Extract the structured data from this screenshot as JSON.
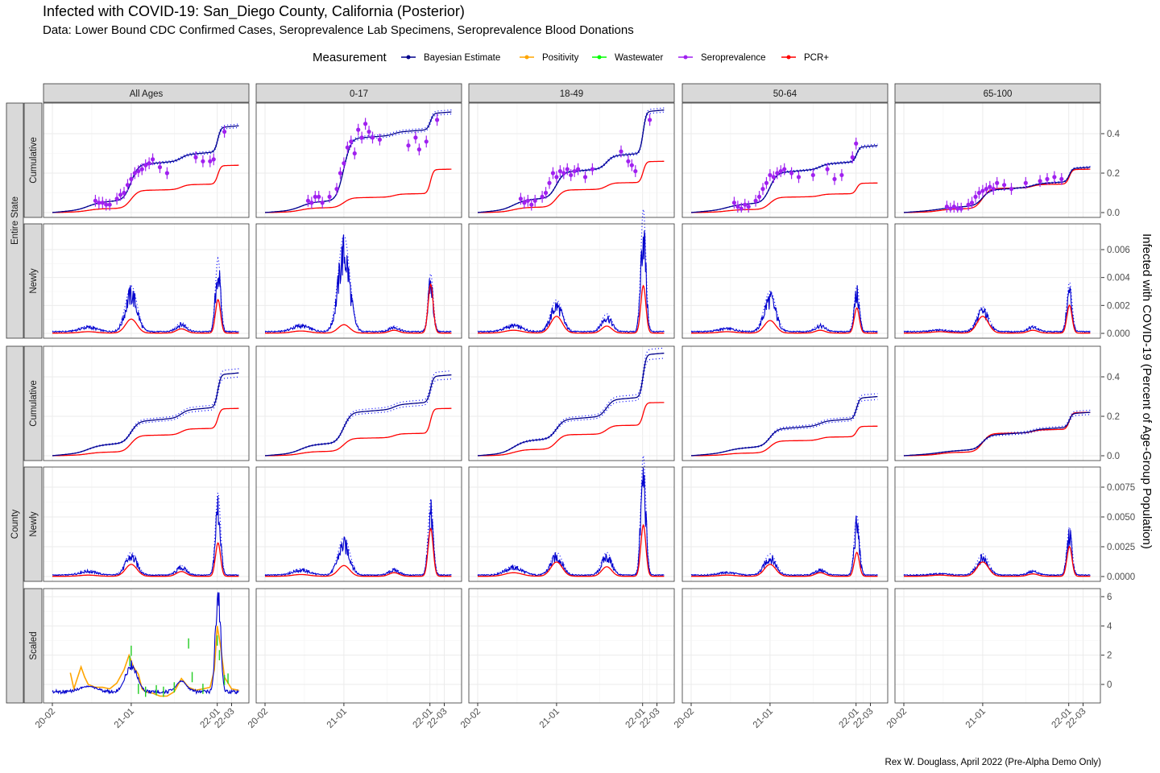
{
  "title": "Infected with COVID-19: San_Diego County, California (Posterior)",
  "subtitle": "Data: Lower Bound CDC Confirmed Cases, Seroprevalence Lab Specimens, Seroprevalence Blood Donations",
  "caption": "Rex W. Douglass, April 2022 (Pre-Alpha Demo Only)",
  "legend": {
    "title": "Measurement",
    "items": [
      {
        "label": "Bayesian Estimate",
        "color": "#00008b"
      },
      {
        "label": "Positivity",
        "color": "#ffa500"
      },
      {
        "label": "Wastewater",
        "color": "#00ff00"
      },
      {
        "label": "Seroprevalence",
        "color": "#a020f0"
      },
      {
        "label": "PCR+",
        "color": "#ff0000"
      }
    ]
  },
  "chart_data": {
    "type": "line",
    "facets": "grid",
    "ages": [
      "All Ages",
      "0-17",
      "18-49",
      "50-64",
      "65-100"
    ],
    "outer_strips": [
      "Entire State",
      "County"
    ],
    "row_strips": [
      "Cumulative",
      "Newly",
      "Cumulative",
      "Newly",
      "Scaled"
    ],
    "ylabel": "Infected with COVID-19 (Percent of Age-Group Population)",
    "x_ticks": [
      "20-02",
      "21-01",
      "22-01",
      "22-03"
    ],
    "x_tick_months": [
      0,
      11,
      23,
      25
    ],
    "x_range_months_since_2020_02": [
      0,
      26
    ],
    "y_ticks": [
      [
        "0.0",
        "0.2",
        "0.4"
      ],
      [
        "0.000",
        "0.002",
        "0.004",
        "0.006"
      ],
      [
        "0.0",
        "0.2",
        "0.4"
      ],
      [
        "0.0000",
        "0.0025",
        "0.0050",
        "0.0075"
      ],
      [
        "0",
        "2",
        "4",
        "6"
      ]
    ],
    "y_tick_values": [
      [
        0,
        0.2,
        0.4
      ],
      [
        0,
        0.002,
        0.004,
        0.006
      ],
      [
        0,
        0.2,
        0.4
      ],
      [
        0,
        0.0025,
        0.005,
        0.0075
      ],
      [
        0,
        2,
        4,
        6
      ]
    ],
    "wave_centers_months": [
      5,
      11,
      18,
      23.1
    ],
    "newly_wave_heights": {
      "note": "peak daily share infected per wave (early 2020, winter 2020-21, summer 2021, Omicron)",
      "state_bayes": [
        [
          0.0003,
          0.0026,
          0.0005,
          0.0042
        ],
        [
          0.0004,
          0.0055,
          0.0003,
          0.0033
        ],
        [
          0.0004,
          0.0018,
          0.001,
          0.007
        ],
        [
          0.0002,
          0.0023,
          0.0004,
          0.0026
        ],
        [
          0.0001,
          0.0014,
          0.0003,
          0.0028
        ]
      ],
      "state_pcr": [
        [
          0.0001,
          0.001,
          0.0003,
          0.0024
        ],
        [
          0.00015,
          0.0006,
          0.0002,
          0.0035
        ],
        [
          0.0002,
          0.0012,
          0.0005,
          0.0034
        ],
        [
          0.0001,
          0.0009,
          0.0002,
          0.0018
        ],
        [
          0.0001,
          0.0012,
          0.0002,
          0.002
        ]
      ],
      "county_bayes": [
        [
          0.0003,
          0.0015,
          0.0006,
          0.0055
        ],
        [
          0.0004,
          0.0025,
          0.0004,
          0.005
        ],
        [
          0.0006,
          0.0015,
          0.0015,
          0.008
        ],
        [
          0.0002,
          0.0014,
          0.0004,
          0.004
        ],
        [
          0.0001,
          0.0014,
          0.0003,
          0.0032
        ]
      ],
      "county_pcr": [
        [
          0.0001,
          0.001,
          0.0004,
          0.0028
        ],
        [
          0.00015,
          0.0009,
          0.0003,
          0.004
        ],
        [
          0.0003,
          0.0012,
          0.0008,
          0.0043
        ],
        [
          0.0001,
          0.001,
          0.0003,
          0.002
        ],
        [
          0.0001,
          0.0012,
          0.0002,
          0.0025
        ]
      ]
    },
    "cumulative_final": {
      "state_bayes": [
        0.44,
        0.51,
        0.52,
        0.34,
        0.23
      ],
      "state_pcr": [
        0.24,
        0.22,
        0.26,
        0.15,
        0.22
      ],
      "county_bayes": [
        0.42,
        0.41,
        0.52,
        0.3,
        0.22
      ],
      "county_pcr": [
        0.24,
        0.24,
        0.27,
        0.15,
        0.22
      ]
    },
    "seroprevalence": [
      [
        [
          6,
          0.06
        ],
        [
          6.5,
          0.05
        ],
        [
          7,
          0.05
        ],
        [
          7.5,
          0.04
        ],
        [
          8,
          0.04
        ],
        [
          9,
          0.07
        ],
        [
          9.5,
          0.09
        ],
        [
          10,
          0.1
        ],
        [
          10.5,
          0.14
        ],
        [
          11,
          0.17
        ],
        [
          11.5,
          0.2
        ],
        [
          12,
          0.21
        ],
        [
          12.5,
          0.22
        ],
        [
          13,
          0.24
        ],
        [
          13.5,
          0.25
        ],
        [
          14,
          0.27
        ],
        [
          15,
          0.23
        ],
        [
          16,
          0.2
        ],
        [
          20,
          0.28
        ],
        [
          21,
          0.26
        ],
        [
          22,
          0.26
        ],
        [
          22.5,
          0.27
        ],
        [
          24,
          0.41
        ]
      ],
      [
        [
          6,
          0.06
        ],
        [
          6.5,
          0.05
        ],
        [
          7,
          0.08
        ],
        [
          7.5,
          0.08
        ],
        [
          8,
          0.05
        ],
        [
          9,
          0.08
        ],
        [
          10,
          0.12
        ],
        [
          10.5,
          0.2
        ],
        [
          11,
          0.25
        ],
        [
          11.5,
          0.33
        ],
        [
          12,
          0.36
        ],
        [
          12.5,
          0.3
        ],
        [
          13,
          0.42
        ],
        [
          13.5,
          0.38
        ],
        [
          14,
          0.45
        ],
        [
          14.5,
          0.41
        ],
        [
          15,
          0.38
        ],
        [
          16,
          0.37
        ],
        [
          20,
          0.34
        ],
        [
          21,
          0.38
        ],
        [
          21.5,
          0.32
        ],
        [
          22.5,
          0.36
        ],
        [
          24,
          0.47
        ]
      ],
      [
        [
          6,
          0.07
        ],
        [
          6.5,
          0.05
        ],
        [
          7,
          0.06
        ],
        [
          7.5,
          0.04
        ],
        [
          8,
          0.06
        ],
        [
          9,
          0.08
        ],
        [
          9.5,
          0.1
        ],
        [
          10,
          0.15
        ],
        [
          10.5,
          0.2
        ],
        [
          11,
          0.18
        ],
        [
          11.5,
          0.21
        ],
        [
          12,
          0.2
        ],
        [
          12.5,
          0.22
        ],
        [
          13,
          0.19
        ],
        [
          13.5,
          0.21
        ],
        [
          14,
          0.22
        ],
        [
          15,
          0.18
        ],
        [
          16,
          0.22
        ],
        [
          20,
          0.31
        ],
        [
          21,
          0.26
        ],
        [
          21.5,
          0.24
        ],
        [
          22,
          0.21
        ],
        [
          24,
          0.47
        ]
      ],
      [
        [
          6,
          0.05
        ],
        [
          6.5,
          0.03
        ],
        [
          7,
          0.02
        ],
        [
          7.5,
          0.04
        ],
        [
          8,
          0.03
        ],
        [
          9,
          0.06
        ],
        [
          9.5,
          0.08
        ],
        [
          10,
          0.12
        ],
        [
          10.5,
          0.15
        ],
        [
          11,
          0.19
        ],
        [
          11.5,
          0.18
        ],
        [
          12,
          0.2
        ],
        [
          12.5,
          0.21
        ],
        [
          13,
          0.22
        ],
        [
          14,
          0.2
        ],
        [
          15,
          0.18
        ],
        [
          17,
          0.19
        ],
        [
          19,
          0.22
        ],
        [
          20,
          0.17
        ],
        [
          21,
          0.19
        ],
        [
          22.5,
          0.28
        ],
        [
          23,
          0.35
        ]
      ],
      [
        [
          6,
          0.03
        ],
        [
          6.5,
          0.02
        ],
        [
          7,
          0.03
        ],
        [
          7.5,
          0.02
        ],
        [
          8,
          0.02
        ],
        [
          9,
          0.04
        ],
        [
          9.5,
          0.05
        ],
        [
          10,
          0.08
        ],
        [
          10.5,
          0.1
        ],
        [
          11,
          0.11
        ],
        [
          11.5,
          0.12
        ],
        [
          12,
          0.13
        ],
        [
          12.5,
          0.12
        ],
        [
          13,
          0.15
        ],
        [
          14,
          0.14
        ],
        [
          15,
          0.12
        ],
        [
          17,
          0.15
        ],
        [
          19,
          0.16
        ],
        [
          20,
          0.17
        ],
        [
          21,
          0.18
        ],
        [
          22,
          0.17
        ]
      ]
    ],
    "scaled_all_ages": {
      "positivity": [
        [
          2.5,
          0.8
        ],
        [
          3,
          -0.3
        ],
        [
          4,
          1.2
        ],
        [
          4.5,
          0.5
        ],
        [
          5,
          0
        ],
        [
          6,
          -0.2
        ],
        [
          7,
          -0.2
        ],
        [
          8,
          -0.3
        ],
        [
          9,
          0.1
        ],
        [
          10,
          1.0
        ],
        [
          10.7,
          2.0
        ],
        [
          11.3,
          1.2
        ],
        [
          12,
          0.7
        ],
        [
          12.5,
          -0.3
        ],
        [
          13,
          -0.5
        ],
        [
          14,
          -0.6
        ],
        [
          15,
          -0.8
        ],
        [
          16,
          -0.8
        ],
        [
          17,
          -0.5
        ],
        [
          18,
          0.4
        ],
        [
          19,
          -0.2
        ],
        [
          20,
          -0.4
        ],
        [
          21,
          -0.3
        ],
        [
          22,
          -0.2
        ],
        [
          22.6,
          1.0
        ],
        [
          23,
          4.0
        ],
        [
          23.5,
          2.5
        ],
        [
          24,
          0.5
        ],
        [
          25,
          -0.3
        ],
        [
          26,
          -0.4
        ]
      ],
      "wastewater": [
        [
          10.8,
          1.6
        ],
        [
          11,
          2.3
        ],
        [
          12,
          -0.3
        ],
        [
          13,
          -0.5
        ],
        [
          14.5,
          -0.4
        ],
        [
          15.5,
          -0.5
        ],
        [
          17,
          -0.2
        ],
        [
          19,
          2.8
        ],
        [
          19.5,
          0.5
        ],
        [
          21,
          -0.3
        ],
        [
          23,
          3.0
        ],
        [
          23.3,
          2.0
        ],
        [
          24,
          0.3
        ],
        [
          24.5,
          0.4
        ]
      ],
      "bayes_range": [
        -0.5,
        6.2
      ]
    }
  }
}
